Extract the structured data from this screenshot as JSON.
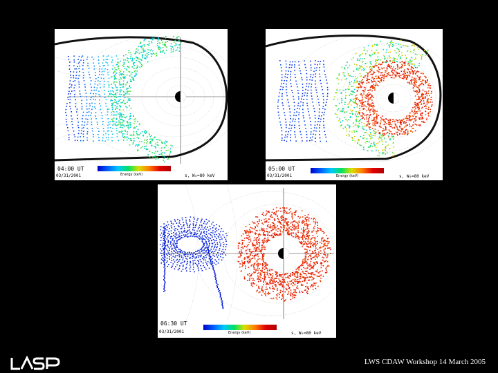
{
  "panels": [
    {
      "time": "04:00 UT",
      "date": "03/31/2001",
      "energy": "Energy (keV)",
      "param": "s, W₀=80 keV"
    },
    {
      "time": "05:00 UT",
      "date": "03/31/2001",
      "energy": "Energy (keV)",
      "param": "s, W₀=80 keV"
    },
    {
      "time": "06:30 UT",
      "date": "03/31/2001",
      "energy": "Energy (keV)",
      "param": "s, W₀=80 keV"
    }
  ],
  "logo": "LASP",
  "footer": "LWS CDAW Workshop 14 March 2005",
  "colors": {
    "background": "#000000",
    "particles_low": "#0000c8",
    "particles_high": "#d40000"
  }
}
